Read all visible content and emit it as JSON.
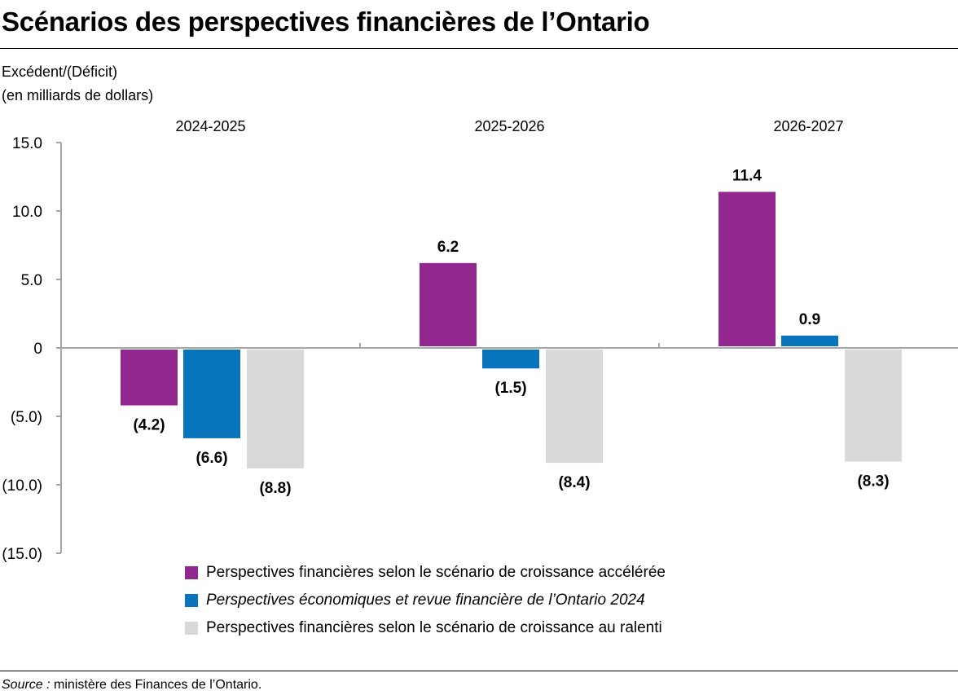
{
  "title": "Scénarios des perspectives financières de l’Ontario",
  "source_label": "Source :",
  "source_text": " ministère des Finances de l’Ontario.",
  "chart_data": {
    "type": "bar",
    "ylabel_lines": [
      "Excédent/(Déficit)",
      "(en milliards de dollars)"
    ],
    "categories": [
      "2024-2025",
      "2025-2026",
      "2026-2027"
    ],
    "ylim": [
      -15,
      15
    ],
    "yticks": [
      15,
      10,
      5,
      0,
      -5,
      -10,
      -15
    ],
    "ytick_labels": [
      "15.0",
      "10.0",
      "5.0",
      "0",
      "(5.0)",
      "(10.0)",
      "(15.0)"
    ],
    "grid": false,
    "legend_position": "bottom",
    "series": [
      {
        "name": "Perspectives financières selon le scénario de croissance accélérée",
        "color": "#92278F",
        "italic": false,
        "values": [
          -4.2,
          6.2,
          11.4
        ],
        "labels": [
          "(4.2)",
          "6.2",
          "11.4"
        ]
      },
      {
        "name": "Perspectives économiques et revue financière de l’Ontario 2024",
        "color": "#0874BB",
        "italic": true,
        "values": [
          -6.6,
          -1.5,
          0.9
        ],
        "labels": [
          "(6.6)",
          "(1.5)",
          "0.9"
        ]
      },
      {
        "name": "Perspectives financières selon le scénario de croissance au ralenti",
        "color": "#D9D9D9",
        "italic": false,
        "values": [
          -8.8,
          -8.4,
          -8.3
        ],
        "labels": [
          "(8.8)",
          "(8.4)",
          "(8.3)"
        ]
      }
    ]
  }
}
